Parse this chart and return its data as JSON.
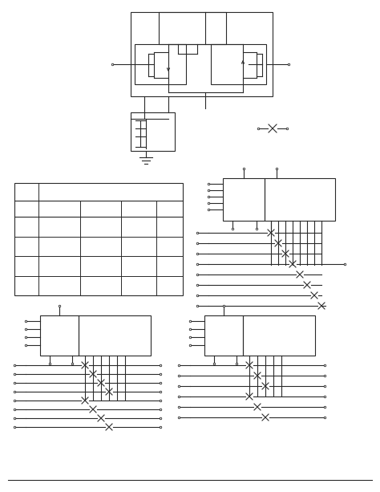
{
  "line_color": "#2a2a2a",
  "fig_width": 4.74,
  "fig_height": 6.13,
  "dpi": 100
}
